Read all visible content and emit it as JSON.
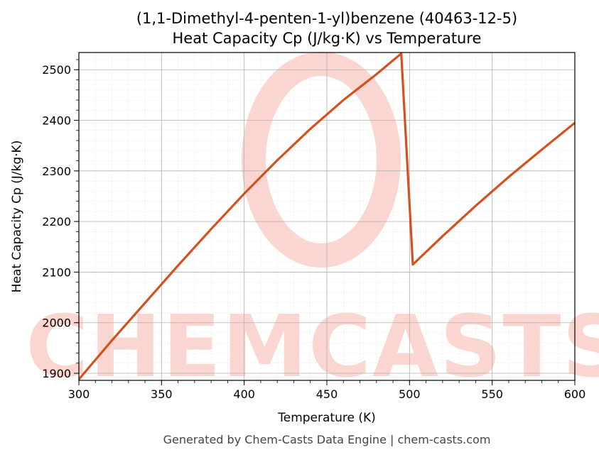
{
  "chart_data": {
    "type": "line",
    "title": "(1,1-Dimethyl-4-penten-1-yl)benzene (40463-12-5)",
    "subtitle": "Heat Capacity Cp (J/kg·K) vs Temperature",
    "xlabel": "Temperature (K)",
    "ylabel": "Heat Capacity Cp (J/kg·K)",
    "xlim": [
      300,
      600
    ],
    "ylim": [
      1886,
      2534
    ],
    "x_ticks": [
      300,
      350,
      400,
      450,
      500,
      550,
      600
    ],
    "y_ticks": [
      1900,
      2000,
      2100,
      2200,
      2300,
      2400,
      2500
    ],
    "grid": true,
    "line_color": "#d4511e",
    "series": [
      {
        "x": [
          300,
          320,
          340,
          360,
          380,
          400,
          420,
          440,
          460,
          480,
          495,
          502,
          520,
          540,
          560,
          580,
          600
        ],
        "y": [
          1888,
          1965,
          2039,
          2113,
          2185,
          2255,
          2321,
          2383,
          2440,
          2491,
          2532,
          2115,
          2171,
          2231,
          2288,
          2342,
          2395
        ]
      }
    ]
  },
  "watermark": "CHEMCASTS",
  "footer": "Generated by Chem-Casts Data Engine | chem-casts.com"
}
